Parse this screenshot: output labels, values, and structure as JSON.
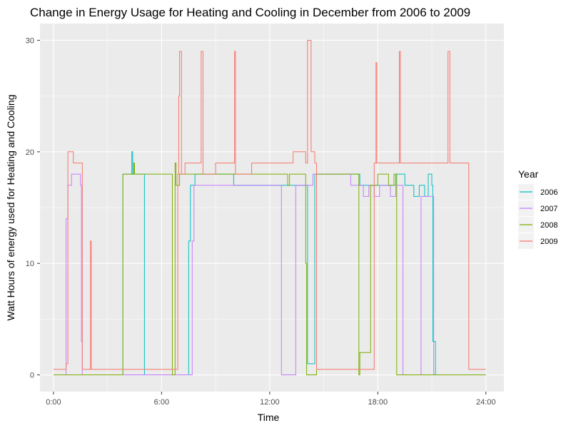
{
  "chart_data": {
    "type": "line",
    "title": "Change in Energy Usage for Heating and Cooling in December from 2006 to 2009",
    "xlabel": "Time",
    "ylabel": "Watt Hours of energy used for Heating and Cooling",
    "xlim": [
      -0.75,
      25.0
    ],
    "ylim": [
      -1.5,
      31.5
    ],
    "x_ticks": [
      0,
      6,
      12,
      18,
      24
    ],
    "x_tick_labels": [
      "0:00",
      "6:00",
      "12:00",
      "18:00",
      "24:00"
    ],
    "y_ticks": [
      0,
      10,
      20,
      30
    ],
    "y_tick_labels": [
      "0",
      "10",
      "20",
      "30"
    ],
    "grid": true,
    "background": "#ebebeb",
    "gridline_color": "#ffffff",
    "legend": {
      "title": "Year",
      "position": "right"
    },
    "series": [
      {
        "name": "2006",
        "color": "#00bfc4",
        "x": [
          0,
          3.8,
          3.85,
          4.3,
          4.35,
          4.4,
          5.0,
          5.05,
          7.0,
          7.45,
          7.5,
          7.6,
          7.7,
          7.85,
          10.0,
          14.0,
          14.1,
          14.4,
          14.5,
          16.5,
          17.0,
          18.0,
          19.0,
          19.5,
          20.0,
          20.3,
          20.6,
          20.8,
          21.0,
          21.05,
          21.2,
          24.0
        ],
        "y": [
          0,
          0,
          18,
          18,
          20,
          18,
          18,
          0,
          0,
          0,
          12,
          17,
          17,
          18,
          17,
          17,
          1,
          1,
          18,
          18,
          17,
          17,
          18,
          17,
          16,
          17,
          16,
          18,
          17,
          3,
          0,
          0
        ]
      },
      {
        "name": "2007",
        "color": "#c77cff",
        "x": [
          0,
          0.65,
          0.7,
          0.8,
          1.0,
          1.4,
          1.5,
          1.55,
          1.6,
          7.2,
          7.3,
          7.7,
          7.8,
          12.6,
          12.65,
          13.4,
          13.45,
          13.6,
          14.3,
          14.4,
          16.5,
          17.2,
          17.5,
          17.8,
          18.1,
          18.7,
          19.0,
          19.3,
          19.4,
          19.5,
          20.3,
          20.4,
          21.0,
          21.1,
          24.0
        ],
        "y": [
          0,
          0,
          14,
          17,
          18,
          18,
          17,
          3,
          0,
          0,
          0,
          12,
          17,
          17,
          0,
          0,
          17,
          17,
          17,
          18,
          17,
          16,
          17,
          16,
          17,
          16,
          17,
          17,
          0,
          0,
          0,
          16,
          16,
          0,
          0
        ]
      },
      {
        "name": "2008",
        "color": "#7cae00",
        "x": [
          0,
          3.8,
          3.85,
          4.4,
          4.45,
          4.5,
          6.6,
          6.65,
          6.75,
          6.8,
          7.0,
          7.2,
          10.0,
          13.0,
          13.1,
          13.9,
          14.0,
          14.05,
          14.2,
          14.6,
          16.9,
          16.95,
          17.0,
          17.6,
          18.0,
          18.6,
          18.9,
          19.0,
          19.05,
          19.4,
          20.9,
          21.0,
          24.0
        ],
        "y": [
          0,
          0,
          18,
          18,
          19,
          18,
          0,
          0,
          19,
          17,
          18,
          18,
          18,
          17,
          18,
          18,
          10,
          0,
          0,
          18,
          18,
          0,
          2,
          17,
          18,
          17,
          18,
          18,
          0,
          0,
          0,
          0,
          0
        ]
      },
      {
        "name": "2009",
        "color": "#f8766d",
        "x": [
          0,
          0.6,
          0.7,
          0.8,
          1.1,
          1.4,
          1.6,
          2.0,
          2.05,
          2.1,
          6.85,
          6.9,
          6.95,
          7.0,
          7.1,
          7.3,
          7.6,
          8.1,
          8.2,
          8.3,
          9.0,
          10.0,
          10.05,
          10.1,
          11.0,
          13.2,
          13.3,
          14.0,
          14.1,
          14.3,
          14.5,
          14.6,
          17.5,
          17.8,
          17.9,
          17.95,
          18.0,
          19.1,
          19.2,
          19.25,
          20.0,
          21.5,
          21.8,
          21.9,
          22.0,
          22.5,
          23.0,
          23.05,
          24.0
        ],
        "y": [
          0.5,
          0.5,
          1,
          20,
          19,
          19,
          0.5,
          0.5,
          12,
          0.5,
          0.5,
          18,
          25,
          29,
          18,
          19,
          19,
          19,
          29,
          18,
          19,
          19,
          29,
          18,
          19,
          19,
          20,
          19,
          30,
          20,
          19,
          0.5,
          0.5,
          19,
          28,
          19,
          19,
          19,
          29,
          19,
          19,
          19,
          19,
          29,
          19,
          19,
          19,
          0.5,
          0.5
        ]
      }
    ]
  }
}
